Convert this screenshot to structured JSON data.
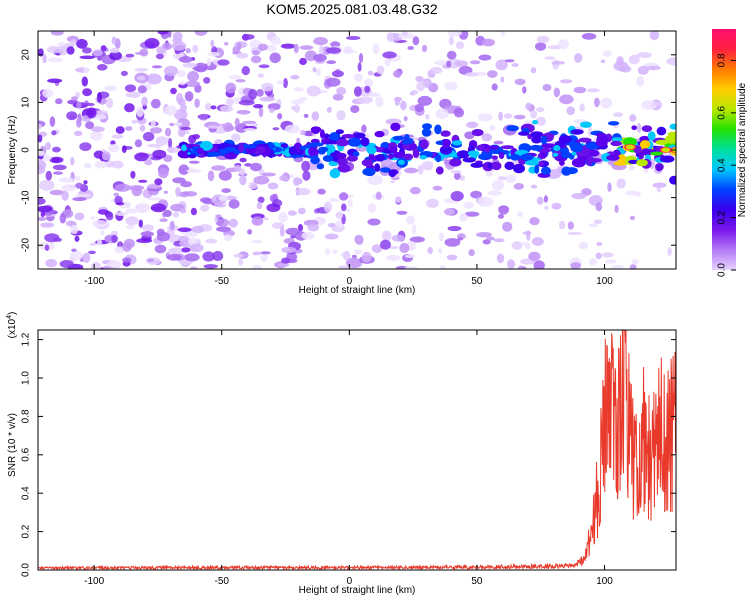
{
  "title": "KOM5.2025.081.03.48.G32",
  "chart_data": [
    {
      "type": "heatmap",
      "title": "KOM5.2025.081.03.48.G32",
      "xlabel": "Height of straight line (km)",
      "ylabel": "Frequency (Hz)",
      "xlim": [
        -122,
        128
      ],
      "ylim": [
        -25,
        25
      ],
      "x_ticks": [
        -100,
        -50,
        0,
        50,
        100
      ],
      "y_ticks": [
        -20,
        -10,
        0,
        10,
        20
      ],
      "colorbar": {
        "label": "Normalized spectral amplitude",
        "range": [
          0.0,
          0.92
        ],
        "ticks": [
          0.0,
          0.2,
          0.4,
          0.6,
          0.8
        ],
        "colormap": [
          "#ffffff",
          "#e6d2ff",
          "#b479f5",
          "#7a16ec",
          "#3a00f0",
          "#0040ff",
          "#00c8ff",
          "#00e0a0",
          "#22e000",
          "#b8e800",
          "#ffcc00",
          "#ff7a00",
          "#ff2040",
          "#ff1070"
        ]
      },
      "feature": {
        "description": "Scattered purple speckles over the full frequency range with a concentrated blob band near 0 Hz from about -65 km to 128 km, strongest (green/yellow/red) near 110–128 km.",
        "band_frequency_hz": 0,
        "band_x_range": [
          -65,
          128
        ],
        "peak_x_range": [
          108,
          128
        ]
      }
    },
    {
      "type": "line",
      "xlabel": "Height of straight line (km)",
      "ylabel": "SNR (10 * v/v)",
      "y_scale_label": "(x10",
      "y_scale_exponent": "4",
      "xlim": [
        -122,
        128
      ],
      "ylim": [
        0.0,
        1.25
      ],
      "x_ticks": [
        -100,
        -50,
        0,
        50,
        100
      ],
      "y_ticks": [
        0.0,
        0.2,
        0.4,
        0.6,
        0.8,
        1.0,
        1.2
      ],
      "series": [
        {
          "color": "#e8392b",
          "profile": [
            [
              -122,
              0.01
            ],
            [
              -60,
              0.012
            ],
            [
              0,
              0.012
            ],
            [
              50,
              0.014
            ],
            [
              88,
              0.02
            ],
            [
              92,
              0.05
            ],
            [
              95,
              0.25
            ],
            [
              98,
              0.55
            ],
            [
              100,
              0.9
            ],
            [
              102,
              1.1
            ],
            [
              104,
              0.8
            ],
            [
              106,
              1.0
            ],
            [
              108,
              1.2
            ],
            [
              110,
              0.95
            ],
            [
              112,
              0.6
            ],
            [
              115,
              0.85
            ],
            [
              118,
              0.7
            ],
            [
              121,
              0.95
            ],
            [
              124,
              0.8
            ],
            [
              128,
              0.9
            ]
          ]
        }
      ]
    }
  ]
}
